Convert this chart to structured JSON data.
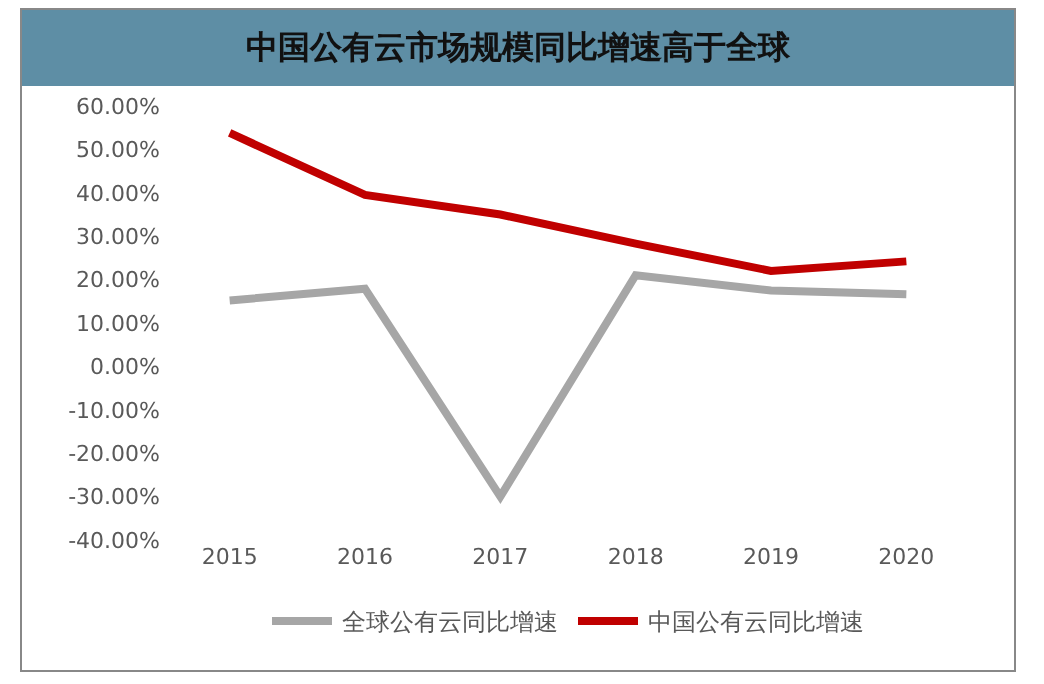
{
  "chart_data": {
    "type": "line",
    "title": "中国公有云市场规模同比增速高于全球",
    "categories": [
      "2015",
      "2016",
      "2017",
      "2018",
      "2019",
      "2020"
    ],
    "series": [
      {
        "name": "全球公有云同比增速",
        "color": "#a6a6a6",
        "values": [
          15.2,
          17.9,
          -30,
          21,
          17.5,
          16.6
        ]
      },
      {
        "name": "中国公有云同比增速",
        "color": "#c00000",
        "values": [
          53.8,
          39.5,
          35,
          28.3,
          22,
          24.2
        ]
      }
    ],
    "ylim": [
      -40,
      60
    ],
    "yticks": [
      {
        "value": -40,
        "label": "-40.00%"
      },
      {
        "value": -30,
        "label": "-30.00%"
      },
      {
        "value": -20,
        "label": "-20.00%"
      },
      {
        "value": -10,
        "label": "-10.00%"
      },
      {
        "value": 0,
        "label": "0.00%"
      },
      {
        "value": 10,
        "label": "10.00%"
      },
      {
        "value": 20,
        "label": "20.00%"
      },
      {
        "value": 30,
        "label": "30.00%"
      },
      {
        "value": 40,
        "label": "40.00%"
      },
      {
        "value": 50,
        "label": "50.00%"
      },
      {
        "value": 60,
        "label": "60.00%"
      }
    ],
    "legend": "bottom",
    "marker": "none",
    "line_style": "solid",
    "grid": false
  }
}
